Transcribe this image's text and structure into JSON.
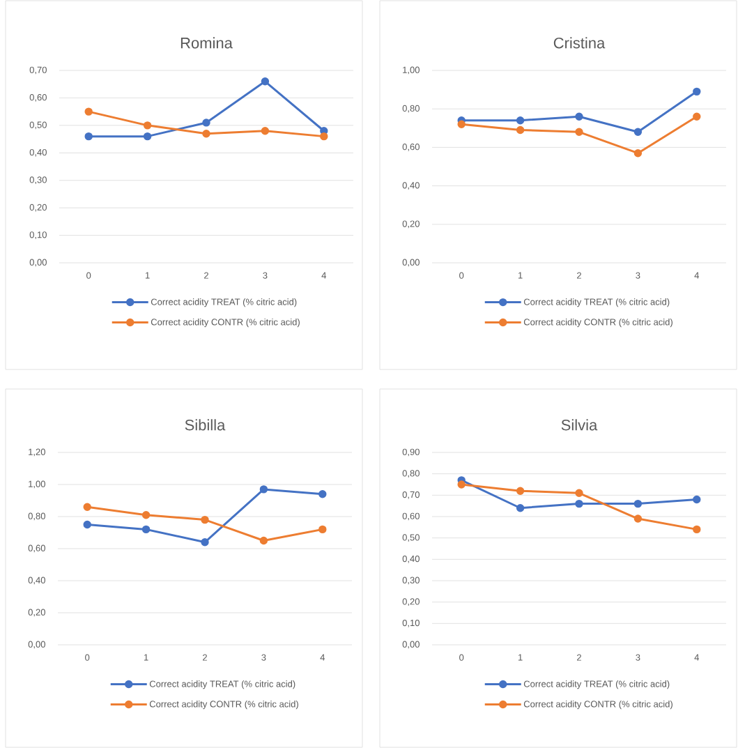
{
  "chart_data": [
    {
      "type": "line",
      "title": "Romina",
      "categories": [
        "0",
        "1",
        "2",
        "3",
        "4"
      ],
      "series": [
        {
          "name": "Correct acidity TREAT (% citric acid)",
          "color": "#4472c4",
          "values": [
            0.46,
            0.46,
            0.51,
            0.66,
            0.48
          ]
        },
        {
          "name": "Correct acidity CONTR (% citric acid)",
          "color": "#ed7d31",
          "values": [
            0.55,
            0.5,
            0.47,
            0.48,
            0.46
          ]
        }
      ],
      "ylim": [
        0,
        0.7
      ],
      "yticks": [
        {
          "value": 0,
          "label": "0,00"
        },
        {
          "value": 0.1,
          "label": "0,10"
        },
        {
          "value": 0.2,
          "label": "0,20"
        },
        {
          "value": 0.3,
          "label": "0,30"
        },
        {
          "value": 0.4,
          "label": "0,40"
        },
        {
          "value": 0.5,
          "label": "0,50"
        },
        {
          "value": 0.6,
          "label": "0,60"
        },
        {
          "value": 0.7,
          "label": "0,70"
        }
      ],
      "grid": "y",
      "legend": "bottom",
      "marker": "circle",
      "line_style": "solid"
    },
    {
      "type": "line",
      "title": "Cristina",
      "categories": [
        "0",
        "1",
        "2",
        "3",
        "4"
      ],
      "series": [
        {
          "name": "Correct acidity TREAT (% citric acid)",
          "color": "#4472c4",
          "values": [
            0.74,
            0.74,
            0.76,
            0.68,
            0.89
          ]
        },
        {
          "name": "Correct acidity CONTR (% citric acid)",
          "color": "#ed7d31",
          "values": [
            0.72,
            0.69,
            0.68,
            0.57,
            0.76
          ]
        }
      ],
      "ylim": [
        0,
        1.0
      ],
      "yticks": [
        {
          "value": 0,
          "label": "0,00"
        },
        {
          "value": 0.2,
          "label": "0,20"
        },
        {
          "value": 0.4,
          "label": "0,40"
        },
        {
          "value": 0.6,
          "label": "0,60"
        },
        {
          "value": 0.8,
          "label": "0,80"
        },
        {
          "value": 1.0,
          "label": "1,00"
        }
      ],
      "grid": "y",
      "legend": "bottom",
      "marker": "circle",
      "line_style": "solid"
    },
    {
      "type": "line",
      "title": "Sibilla",
      "categories": [
        "0",
        "1",
        "2",
        "3",
        "4"
      ],
      "series": [
        {
          "name": "Correct acidity TREAT (% citric acid)",
          "color": "#4472c4",
          "values": [
            0.75,
            0.72,
            0.64,
            0.97,
            0.94
          ]
        },
        {
          "name": "Correct acidity CONTR (% citric acid)",
          "color": "#ed7d31",
          "values": [
            0.86,
            0.81,
            0.78,
            0.65,
            0.72
          ]
        }
      ],
      "ylim": [
        0,
        1.2
      ],
      "yticks": [
        {
          "value": 0,
          "label": "0,00"
        },
        {
          "value": 0.2,
          "label": "0,20"
        },
        {
          "value": 0.4,
          "label": "0,40"
        },
        {
          "value": 0.6,
          "label": "0,60"
        },
        {
          "value": 0.8,
          "label": "0,80"
        },
        {
          "value": 1.0,
          "label": "1,00"
        },
        {
          "value": 1.2,
          "label": "1,20"
        }
      ],
      "grid": "y",
      "legend": "bottom",
      "marker": "circle",
      "line_style": "solid"
    },
    {
      "type": "line",
      "title": "Silvia",
      "categories": [
        "0",
        "1",
        "2",
        "3",
        "4"
      ],
      "series": [
        {
          "name": "Correct acidity TREAT (% citric acid)",
          "color": "#4472c4",
          "values": [
            0.77,
            0.64,
            0.66,
            0.66,
            0.68
          ]
        },
        {
          "name": "Correct acidity CONTR (% citric acid)",
          "color": "#ed7d31",
          "values": [
            0.75,
            0.72,
            0.71,
            0.59,
            0.54
          ]
        }
      ],
      "ylim": [
        0,
        0.9
      ],
      "yticks": [
        {
          "value": 0,
          "label": "0,00"
        },
        {
          "value": 0.1,
          "label": "0,10"
        },
        {
          "value": 0.2,
          "label": "0,20"
        },
        {
          "value": 0.3,
          "label": "0,30"
        },
        {
          "value": 0.4,
          "label": "0,40"
        },
        {
          "value": 0.5,
          "label": "0,50"
        },
        {
          "value": 0.6,
          "label": "0,60"
        },
        {
          "value": 0.7,
          "label": "0,70"
        },
        {
          "value": 0.8,
          "label": "0,80"
        },
        {
          "value": 0.9,
          "label": "0,90"
        }
      ],
      "grid": "y",
      "legend": "bottom",
      "marker": "circle",
      "line_style": "solid"
    }
  ]
}
